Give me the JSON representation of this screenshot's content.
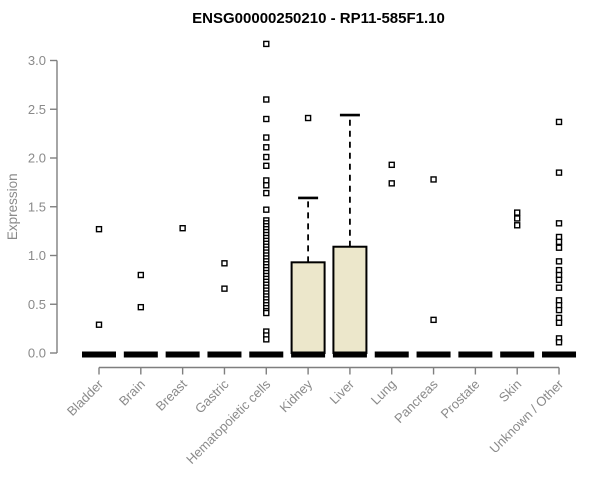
{
  "chart_data": {
    "type": "boxplot",
    "title": "ENSG00000250210 - RP11-585F1.10",
    "ylabel": "Expression",
    "ylim": [
      0.0,
      3.0
    ],
    "grid": false,
    "legend": false,
    "ytick_labels": [
      "0.0",
      "0.5",
      "1.0",
      "1.5",
      "2.0",
      "2.5",
      "3.0"
    ],
    "categories": [
      "Bladder",
      "Brain",
      "Breast",
      "Gastric",
      "Hematopoietic cells",
      "Kidney",
      "Liver",
      "Lung",
      "Pancreas",
      "Prostate",
      "Skin",
      "Unknown / Other"
    ],
    "groups": [
      {
        "name": "Bladder",
        "box": {
          "q1": 0,
          "median": 0,
          "q3": 0
        },
        "points": [
          1.27,
          0.29
        ]
      },
      {
        "name": "Brain",
        "box": {
          "q1": 0,
          "median": 0,
          "q3": 0
        },
        "points": [
          0.8,
          0.47
        ]
      },
      {
        "name": "Breast",
        "box": {
          "q1": 0,
          "median": 0,
          "q3": 0
        },
        "points": [
          1.28
        ]
      },
      {
        "name": "Gastric",
        "box": {
          "q1": 0,
          "median": 0,
          "q3": 0
        },
        "points": [
          0.92,
          0.66
        ]
      },
      {
        "name": "Hematopoietic cells",
        "box": {
          "q1": 0,
          "median": 0,
          "q3": 0
        },
        "points": [
          3.17,
          2.6,
          2.4,
          2.21,
          2.11,
          2.01,
          1.92,
          1.77,
          1.72,
          1.64,
          1.47,
          1.36,
          1.33,
          1.3,
          1.27,
          1.24,
          1.21,
          1.18,
          1.15,
          1.12,
          1.09,
          1.06,
          1.03,
          1.0,
          0.97,
          0.94,
          0.91,
          0.88,
          0.85,
          0.82,
          0.79,
          0.76,
          0.73,
          0.7,
          0.67,
          0.64,
          0.61,
          0.58,
          0.55,
          0.52,
          0.49,
          0.46,
          0.43,
          0.41,
          0.22,
          0.18,
          0.14
        ]
      },
      {
        "name": "Kidney",
        "box": {
          "q1": 0,
          "median": 0,
          "q3": 0.93,
          "whisker_high": 1.59
        },
        "points": [
          2.41
        ]
      },
      {
        "name": "Liver",
        "box": {
          "q1": 0,
          "median": 0,
          "q3": 1.09,
          "whisker_high": 2.44
        },
        "points": []
      },
      {
        "name": "Lung",
        "box": {
          "q1": 0,
          "median": 0,
          "q3": 0
        },
        "points": [
          1.93,
          1.74
        ]
      },
      {
        "name": "Pancreas",
        "box": {
          "q1": 0,
          "median": 0,
          "q3": 0
        },
        "points": [
          1.78,
          0.34
        ]
      },
      {
        "name": "Prostate",
        "box": {
          "q1": 0,
          "median": 0,
          "q3": 0
        },
        "points": []
      },
      {
        "name": "Skin",
        "box": {
          "q1": 0,
          "median": 0,
          "q3": 0
        },
        "points": [
          1.44,
          1.38,
          1.31
        ]
      },
      {
        "name": "Unknown / Other",
        "box": {
          "q1": 0,
          "median": 0,
          "q3": 0
        },
        "points": [
          2.37,
          1.85,
          1.33,
          1.19,
          1.14,
          1.08,
          0.94,
          0.85,
          0.8,
          0.75,
          0.67,
          0.54,
          0.49,
          0.44,
          0.36,
          0.31,
          0.15,
          0.11
        ]
      }
    ],
    "colors": {
      "box_fill": "#ece7cb",
      "box_stroke": "#000000",
      "median": "#000000",
      "point_stroke": "#000000",
      "point_fill": "#ffffff",
      "axis": "#7f7f7f",
      "tick_label": "#8a8a8a",
      "title": "#000000"
    }
  }
}
